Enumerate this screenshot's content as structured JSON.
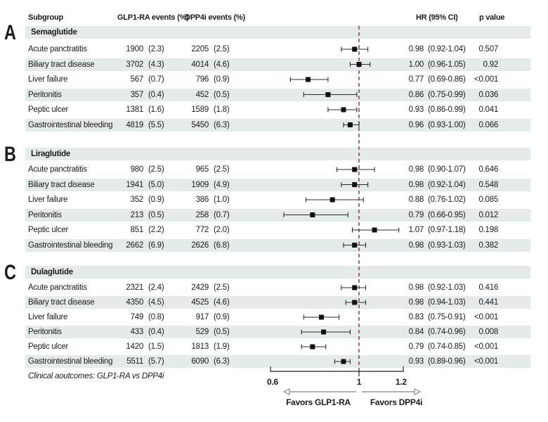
{
  "columns": {
    "subgroup": "Subgroup",
    "glp1": "GLP1-RA events (%)",
    "dpp4i": "DPP4i events (%)",
    "hr": "HR (95% CI)",
    "p": "p value"
  },
  "footer_note": "Clinical aoutcomes: GLP1-RA vs DPP4i",
  "axis": {
    "xmin": 0.6,
    "xmax": 1.2,
    "ref_line": 1,
    "tick_values": [
      0.6,
      1,
      1.2
    ],
    "tick_labels": [
      "0.6",
      "1",
      "1.2"
    ],
    "favors_left": "Favors GLP1-RA",
    "favors_right": "Favors DPP4i"
  },
  "colors": {
    "band": "#e5eaea",
    "ref_line": "#8b3d3d",
    "marker": "#111111",
    "whisker": "#2b2b2b",
    "arrow": "#828282",
    "axis": "#222222"
  },
  "chart_data": {
    "type": "scatter",
    "variant": "forest-plot",
    "xlabel_left": "Favors GLP1-RA",
    "xlabel_right": "Favors DPP4i",
    "xlim": [
      0.6,
      1.2
    ],
    "reference_value": 1,
    "panels": [
      {
        "label": "A",
        "drug": "Semaglutide",
        "rows": [
          {
            "subgroup": "Acute panctratitis",
            "glp1_n": "1900",
            "glp1_pct": "(2.3)",
            "dpp4i_n": "2205",
            "dpp4i_pct": "(2.5)",
            "hr": 0.98,
            "ci_low": 0.92,
            "ci_high": 1.04,
            "hr_text": "0.98",
            "ci_text": "(0.92-1.04)",
            "p_text": "0.507"
          },
          {
            "subgroup": "Biliary tract disease",
            "glp1_n": "3702",
            "glp1_pct": "(4.3)",
            "dpp4i_n": "4014",
            "dpp4i_pct": "(4.6)",
            "hr": 1.0,
            "ci_low": 0.96,
            "ci_high": 1.05,
            "hr_text": "1.00",
            "ci_text": "(0.96-1.05)",
            "p_text": "0.92"
          },
          {
            "subgroup": "Liver failure",
            "glp1_n": "567",
            "glp1_pct": "(0.7)",
            "dpp4i_n": "796",
            "dpp4i_pct": "(0.9)",
            "hr": 0.77,
            "ci_low": 0.69,
            "ci_high": 0.86,
            "hr_text": "0.77",
            "ci_text": "(0.69-0.86)",
            "p_text": "<0.001"
          },
          {
            "subgroup": "Peritonitis",
            "glp1_n": "357",
            "glp1_pct": "(0.4)",
            "dpp4i_n": "452",
            "dpp4i_pct": "(0.5)",
            "hr": 0.86,
            "ci_low": 0.75,
            "ci_high": 0.99,
            "hr_text": "0.86",
            "ci_text": "(0.75-0.99)",
            "p_text": "0.036"
          },
          {
            "subgroup": "Peptic ulcer",
            "glp1_n": "1381",
            "glp1_pct": "(1.6)",
            "dpp4i_n": "1589",
            "dpp4i_pct": "(1.8)",
            "hr": 0.93,
            "ci_low": 0.86,
            "ci_high": 0.99,
            "hr_text": "0.93",
            "ci_text": "(0.86-0.99)",
            "p_text": "0.041"
          },
          {
            "subgroup": "Gastrointestinal bleeding",
            "glp1_n": "4819",
            "glp1_pct": "(5.5)",
            "dpp4i_n": "5450",
            "dpp4i_pct": "(6.3)",
            "hr": 0.96,
            "ci_low": 0.93,
            "ci_high": 1.0,
            "hr_text": "0.96",
            "ci_text": "(0.93-1.00)",
            "p_text": "0.066"
          }
        ]
      },
      {
        "label": "B",
        "drug": "Liraglutide",
        "rows": [
          {
            "subgroup": "Acute panctratitis",
            "glp1_n": "980",
            "glp1_pct": "(2.5)",
            "dpp4i_n": "965",
            "dpp4i_pct": "(2.5)",
            "hr": 0.98,
            "ci_low": 0.9,
            "ci_high": 1.07,
            "hr_text": "0.98",
            "ci_text": "(0.90-1.07)",
            "p_text": "0.646"
          },
          {
            "subgroup": "Biliary tract disease",
            "glp1_n": "1941",
            "glp1_pct": "(5.0)",
            "dpp4i_n": "1909",
            "dpp4i_pct": "(4.9)",
            "hr": 0.98,
            "ci_low": 0.92,
            "ci_high": 1.04,
            "hr_text": "0.98",
            "ci_text": "(0.92-1.04)",
            "p_text": "0.548"
          },
          {
            "subgroup": "Liver failure",
            "glp1_n": "352",
            "glp1_pct": "(0.9)",
            "dpp4i_n": "386",
            "dpp4i_pct": "(1.0)",
            "hr": 0.88,
            "ci_low": 0.76,
            "ci_high": 1.02,
            "hr_text": "0.88",
            "ci_text": "(0.76-1.02)",
            "p_text": "0.085"
          },
          {
            "subgroup": "Peritonitis",
            "glp1_n": "213",
            "glp1_pct": "(0.5)",
            "dpp4i_n": "258",
            "dpp4i_pct": "(0.7)",
            "hr": 0.79,
            "ci_low": 0.66,
            "ci_high": 0.95,
            "hr_text": "0.79",
            "ci_text": "(0.66-0.95)",
            "p_text": "0.012"
          },
          {
            "subgroup": "Peptic ulcer",
            "glp1_n": "851",
            "glp1_pct": "(2.2)",
            "dpp4i_n": "772",
            "dpp4i_pct": "(2.0)",
            "hr": 1.07,
            "ci_low": 0.97,
            "ci_high": 1.18,
            "hr_text": "1.07",
            "ci_text": "(0.97-1.18)",
            "p_text": "0.198"
          },
          {
            "subgroup": "Gastrointestinal bleeding",
            "glp1_n": "2662",
            "glp1_pct": "(6.9)",
            "dpp4i_n": "2626",
            "dpp4i_pct": "(6.8)",
            "hr": 0.98,
            "ci_low": 0.93,
            "ci_high": 1.03,
            "hr_text": "0.98",
            "ci_text": "(0.93-1.03)",
            "p_text": "0.382"
          }
        ]
      },
      {
        "label": "C",
        "drug": "Dulaglutide",
        "rows": [
          {
            "subgroup": "Acute panctratitis",
            "glp1_n": "2321",
            "glp1_pct": "(2.4)",
            "dpp4i_n": "2429",
            "dpp4i_pct": "(2.5)",
            "hr": 0.98,
            "ci_low": 0.92,
            "ci_high": 1.03,
            "hr_text": "0.98",
            "ci_text": "(0.92-1.03)",
            "p_text": "0.416"
          },
          {
            "subgroup": "Biliary tract disease",
            "glp1_n": "4350",
            "glp1_pct": "(4.5)",
            "dpp4i_n": "4525",
            "dpp4i_pct": "(4.6)",
            "hr": 0.98,
            "ci_low": 0.94,
            "ci_high": 1.03,
            "hr_text": "0.98",
            "ci_text": "(0.94-1.03)",
            "p_text": "0.441"
          },
          {
            "subgroup": "Liver failure",
            "glp1_n": "749",
            "glp1_pct": "(0.8)",
            "dpp4i_n": "917",
            "dpp4i_pct": "(0.9)",
            "hr": 0.83,
            "ci_low": 0.75,
            "ci_high": 0.91,
            "hr_text": "0.83",
            "ci_text": "(0.75-0.91)",
            "p_text": "<0.001"
          },
          {
            "subgroup": "Peritonitis",
            "glp1_n": "433",
            "glp1_pct": "(0.4)",
            "dpp4i_n": "529",
            "dpp4i_pct": "(0.5)",
            "hr": 0.84,
            "ci_low": 0.74,
            "ci_high": 0.96,
            "hr_text": "0.84",
            "ci_text": "(0.74-0.96)",
            "p_text": "0.008"
          },
          {
            "subgroup": "Peptic ulcer",
            "glp1_n": "1420",
            "glp1_pct": "(1.5)",
            "dpp4i_n": "1813",
            "dpp4i_pct": "(1.9)",
            "hr": 0.79,
            "ci_low": 0.74,
            "ci_high": 0.85,
            "hr_text": "0.79",
            "ci_text": "(0.74-0.85)",
            "p_text": "<0.001"
          },
          {
            "subgroup": "Gastrointestinal bleeding",
            "glp1_n": "5511",
            "glp1_pct": "(5.7)",
            "dpp4i_n": "6090",
            "dpp4i_pct": "(6.3)",
            "hr": 0.93,
            "ci_low": 0.89,
            "ci_high": 0.96,
            "hr_text": "0.93",
            "ci_text": "(0.89-0.96)",
            "p_text": "<0.001"
          }
        ]
      }
    ]
  }
}
